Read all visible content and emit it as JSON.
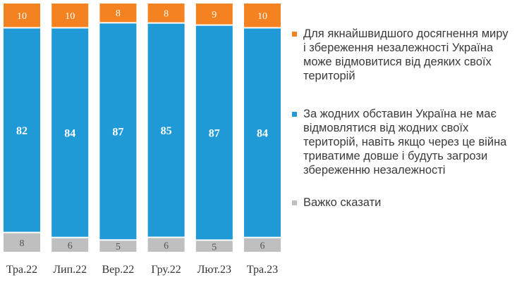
{
  "chart_data": {
    "type": "bar",
    "stacked": true,
    "categories": [
      "Тра.22",
      "Лип.22",
      "Вер.22",
      "Гру.22",
      "Лют.23",
      "Тра.23"
    ],
    "series": [
      {
        "name": "Важко сказати",
        "values": [
          8,
          6,
          5,
          6,
          5,
          6
        ],
        "color": "#bfbfbf"
      },
      {
        "name": "За жодних обставин Україна не має відмовлятися від жодних своїх територій, навіть якщо через це війна триватиме довше і будуть загрози збереженню незалежності",
        "values": [
          82,
          84,
          87,
          85,
          87,
          84
        ],
        "color": "#1f9ad6"
      },
      {
        "name": "Для якнайшвидшого досягнення миру і збереження незалежності Україна може відмовитися від деяких своїх територій",
        "values": [
          10,
          10,
          8,
          8,
          9,
          10
        ],
        "color": "#f58220"
      }
    ],
    "legend_order": [
      2,
      1,
      0
    ],
    "legend_position": "right",
    "grid": false,
    "ylim": [
      0,
      100
    ]
  }
}
